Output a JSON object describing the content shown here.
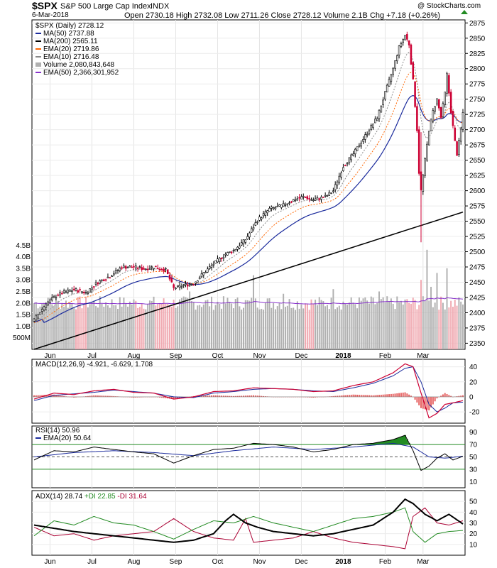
{
  "header": {
    "symbol": "$SPX",
    "name": "S&P 500 Large Cap Index",
    "exchange": "INDX",
    "date": "6-Mar-2018",
    "ohlc": "Open 2730.18  High 2732.08  Low 2711.26  Close 2728.12  Volume 2.1B  Chg +7.18 (+0.26%)",
    "watermark": "@ StockCharts.com"
  },
  "legend": {
    "price": "$SPX (Daily) 2728.12",
    "ma50": "MA(50) 2737.88",
    "ma200": "MA(200) 2565.11",
    "ema20": "EMA(20) 2719.86",
    "ema10": "EMA(10) 2716.48",
    "volume": "Volume 2,080,843,648",
    "vema50": "EMA(50) 2,366,301,952",
    "macd": "MACD(12,26,9) -4.921, -6.629, 1.708",
    "rsi": "RSI(14) 50.96",
    "rsi_ema": "EMA(20) 50.64",
    "adx_label": "ADX(14) 28.74",
    "pdi_label": "+DI 22.85",
    "mdi_label": "-DI 31.64"
  },
  "colors": {
    "up": "#ffffff",
    "down": "#cc0033",
    "ma50": "#1a2a9c",
    "ma200": "#000000",
    "ema20": "#ff6600",
    "ema10": "#888888",
    "vol_up": "#b0b0b0",
    "vol_down": "#f0a8b0",
    "vema": "#8833cc",
    "macd": "#cc0033",
    "signal": "#1a2a9c",
    "hist": "#e04040",
    "rsi_fill": "#228b22",
    "adx": "#000000",
    "pdi": "#228b22",
    "mdi": "#aa0033"
  },
  "chart_data": [
    {
      "type": "candlestick",
      "title": "$SPX S&P 500 Large Cap Index INDX",
      "x_labels": [
        "Jun",
        "Jul",
        "Aug",
        "Sep",
        "Oct",
        "Nov",
        "Dec",
        "2018",
        "Feb",
        "Mar"
      ],
      "y_ticks": [
        2350,
        2375,
        2400,
        2425,
        2450,
        2475,
        2500,
        2525,
        2550,
        2575,
        2600,
        2625,
        2650,
        2675,
        2700,
        2725,
        2750,
        2775,
        2800,
        2825,
        2850,
        2875
      ],
      "ylim": [
        2340,
        2880
      ],
      "close_anchors": [
        [
          0,
          2388
        ],
        [
          6,
          2415
        ],
        [
          12,
          2430
        ],
        [
          20,
          2438
        ],
        [
          26,
          2433
        ],
        [
          32,
          2450
        ],
        [
          38,
          2460
        ],
        [
          44,
          2475
        ],
        [
          50,
          2475
        ],
        [
          55,
          2472
        ],
        [
          60,
          2475
        ],
        [
          66,
          2470
        ],
        [
          70,
          2440
        ],
        [
          75,
          2445
        ],
        [
          80,
          2448
        ],
        [
          84,
          2462
        ],
        [
          90,
          2480
        ],
        [
          96,
          2496
        ],
        [
          100,
          2502
        ],
        [
          106,
          2520
        ],
        [
          112,
          2552
        ],
        [
          118,
          2570
        ],
        [
          124,
          2575
        ],
        [
          130,
          2585
        ],
        [
          135,
          2590
        ],
        [
          140,
          2585
        ],
        [
          146,
          2590
        ],
        [
          150,
          2600
        ],
        [
          155,
          2640
        ],
        [
          160,
          2660
        ],
        [
          164,
          2680
        ],
        [
          168,
          2700
        ],
        [
          172,
          2720
        ],
        [
          176,
          2760
        ],
        [
          180,
          2800
        ],
        [
          183,
          2835
        ],
        [
          186,
          2855
        ],
        [
          188,
          2840
        ],
        [
          190,
          2780
        ],
        [
          192,
          2700
        ],
        [
          193,
          2630
        ],
        [
          194,
          2600
        ],
        [
          196,
          2650
        ],
        [
          198,
          2700
        ],
        [
          200,
          2730
        ],
        [
          202,
          2750
        ],
        [
          204,
          2720
        ],
        [
          206,
          2760
        ],
        [
          207,
          2790
        ],
        [
          209,
          2730
        ],
        [
          211,
          2680
        ],
        [
          212,
          2660
        ],
        [
          214,
          2700
        ],
        [
          215,
          2728
        ]
      ],
      "series_ma": [
        {
          "name": "MA(50)",
          "start_val": 2385,
          "end_val": 2738
        },
        {
          "name": "MA(200)",
          "start_val": 2340,
          "end_val": 2565
        },
        {
          "name": "EMA(20)",
          "end_val": 2720
        },
        {
          "name": "EMA(10)",
          "end_val": 2716
        }
      ]
    },
    {
      "type": "bar",
      "title": "Volume",
      "y_ticks": [
        "500M",
        "1.0B",
        "1.5B",
        "2.0B",
        "2.5B",
        "3.0B",
        "3.5B",
        "4.0B",
        "4.5B"
      ],
      "ylim": [
        0,
        4.6
      ],
      "typical_value_B": 2.0,
      "spikes_B": [
        [
          78,
          2.5
        ],
        [
          110,
          3.2
        ],
        [
          125,
          2.4
        ],
        [
          150,
          2.6
        ],
        [
          165,
          2.2
        ],
        [
          173,
          2.5
        ],
        [
          194,
          3.0
        ],
        [
          197,
          4.3
        ],
        [
          199,
          2.7
        ],
        [
          202,
          3.3
        ],
        [
          207,
          3.5
        ]
      ]
    },
    {
      "type": "line",
      "title": "MACD(12,26,9)",
      "y_ticks": [
        40,
        20,
        0,
        -20
      ],
      "ylim": [
        -35,
        50
      ],
      "macd_anchors": [
        [
          0,
          -3
        ],
        [
          10,
          5
        ],
        [
          20,
          3
        ],
        [
          30,
          8
        ],
        [
          40,
          10
        ],
        [
          50,
          6
        ],
        [
          60,
          5
        ],
        [
          70,
          -3
        ],
        [
          80,
          0
        ],
        [
          90,
          7
        ],
        [
          100,
          8
        ],
        [
          110,
          12
        ],
        [
          120,
          11
        ],
        [
          130,
          10
        ],
        [
          140,
          7
        ],
        [
          150,
          8
        ],
        [
          160,
          15
        ],
        [
          170,
          20
        ],
        [
          180,
          32
        ],
        [
          186,
          44
        ],
        [
          190,
          40
        ],
        [
          194,
          5
        ],
        [
          198,
          -28
        ],
        [
          202,
          -22
        ],
        [
          206,
          -10
        ],
        [
          210,
          -8
        ],
        [
          215,
          -5
        ]
      ],
      "signal_anchors": [
        [
          0,
          -5
        ],
        [
          10,
          2
        ],
        [
          20,
          4
        ],
        [
          30,
          6
        ],
        [
          40,
          9
        ],
        [
          50,
          7
        ],
        [
          60,
          5
        ],
        [
          70,
          0
        ],
        [
          80,
          -1
        ],
        [
          90,
          5
        ],
        [
          100,
          7
        ],
        [
          110,
          10
        ],
        [
          120,
          11
        ],
        [
          130,
          10
        ],
        [
          140,
          8
        ],
        [
          150,
          7
        ],
        [
          160,
          12
        ],
        [
          170,
          18
        ],
        [
          180,
          28
        ],
        [
          186,
          38
        ],
        [
          190,
          40
        ],
        [
          194,
          20
        ],
        [
          198,
          -10
        ],
        [
          202,
          -20
        ],
        [
          206,
          -15
        ],
        [
          210,
          -8
        ],
        [
          215,
          -7
        ]
      ]
    },
    {
      "type": "line",
      "title": "RSI(14)",
      "y_ticks": [
        90,
        70,
        50,
        30,
        10
      ],
      "ylim": [
        0,
        100
      ],
      "guides": [
        70,
        50,
        30
      ],
      "rsi_anchors": [
        [
          0,
          45
        ],
        [
          10,
          60
        ],
        [
          20,
          58
        ],
        [
          30,
          66
        ],
        [
          40,
          62
        ],
        [
          50,
          58
        ],
        [
          60,
          55
        ],
        [
          70,
          40
        ],
        [
          80,
          52
        ],
        [
          90,
          62
        ],
        [
          100,
          64
        ],
        [
          110,
          72
        ],
        [
          120,
          70
        ],
        [
          130,
          66
        ],
        [
          140,
          58
        ],
        [
          150,
          62
        ],
        [
          160,
          70
        ],
        [
          170,
          72
        ],
        [
          180,
          78
        ],
        [
          186,
          85
        ],
        [
          190,
          60
        ],
        [
          194,
          28
        ],
        [
          198,
          35
        ],
        [
          202,
          48
        ],
        [
          206,
          55
        ],
        [
          210,
          45
        ],
        [
          215,
          51
        ]
      ],
      "ema_anchors": [
        [
          0,
          50
        ],
        [
          20,
          57
        ],
        [
          40,
          60
        ],
        [
          60,
          57
        ],
        [
          80,
          52
        ],
        [
          100,
          60
        ],
        [
          120,
          66
        ],
        [
          140,
          62
        ],
        [
          160,
          66
        ],
        [
          180,
          72
        ],
        [
          190,
          66
        ],
        [
          198,
          50
        ],
        [
          206,
          48
        ],
        [
          215,
          51
        ]
      ]
    },
    {
      "type": "line",
      "title": "ADX(14)",
      "y_ticks": [
        50,
        40,
        30,
        20,
        10
      ],
      "ylim": [
        0,
        60
      ],
      "adx_anchors": [
        [
          0,
          28
        ],
        [
          20,
          22
        ],
        [
          40,
          18
        ],
        [
          60,
          14
        ],
        [
          70,
          12
        ],
        [
          80,
          14
        ],
        [
          90,
          20
        ],
        [
          96,
          32
        ],
        [
          100,
          38
        ],
        [
          106,
          30
        ],
        [
          112,
          26
        ],
        [
          120,
          22
        ],
        [
          130,
          20
        ],
        [
          140,
          18
        ],
        [
          150,
          20
        ],
        [
          160,
          24
        ],
        [
          170,
          28
        ],
        [
          180,
          40
        ],
        [
          186,
          52
        ],
        [
          190,
          48
        ],
        [
          196,
          38
        ],
        [
          202,
          32
        ],
        [
          208,
          38
        ],
        [
          215,
          29
        ]
      ],
      "pdi_anchors": [
        [
          0,
          18
        ],
        [
          10,
          32
        ],
        [
          20,
          28
        ],
        [
          30,
          36
        ],
        [
          40,
          30
        ],
        [
          50,
          28
        ],
        [
          60,
          22
        ],
        [
          70,
          15
        ],
        [
          80,
          24
        ],
        [
          90,
          32
        ],
        [
          100,
          30
        ],
        [
          110,
          36
        ],
        [
          120,
          30
        ],
        [
          130,
          26
        ],
        [
          140,
          22
        ],
        [
          150,
          28
        ],
        [
          160,
          34
        ],
        [
          170,
          36
        ],
        [
          180,
          40
        ],
        [
          186,
          44
        ],
        [
          190,
          22
        ],
        [
          196,
          12
        ],
        [
          202,
          20
        ],
        [
          208,
          22
        ],
        [
          215,
          23
        ]
      ],
      "mdi_anchors": [
        [
          0,
          26
        ],
        [
          10,
          18
        ],
        [
          20,
          20
        ],
        [
          30,
          14
        ],
        [
          40,
          18
        ],
        [
          50,
          20
        ],
        [
          60,
          22
        ],
        [
          70,
          34
        ],
        [
          80,
          22
        ],
        [
          90,
          16
        ],
        [
          100,
          14
        ],
        [
          106,
          34
        ],
        [
          110,
          12
        ],
        [
          120,
          14
        ],
        [
          130,
          16
        ],
        [
          140,
          22
        ],
        [
          150,
          16
        ],
        [
          160,
          12
        ],
        [
          170,
          10
        ],
        [
          180,
          8
        ],
        [
          186,
          6
        ],
        [
          190,
          36
        ],
        [
          196,
          44
        ],
        [
          202,
          30
        ],
        [
          208,
          28
        ],
        [
          215,
          32
        ]
      ]
    }
  ]
}
